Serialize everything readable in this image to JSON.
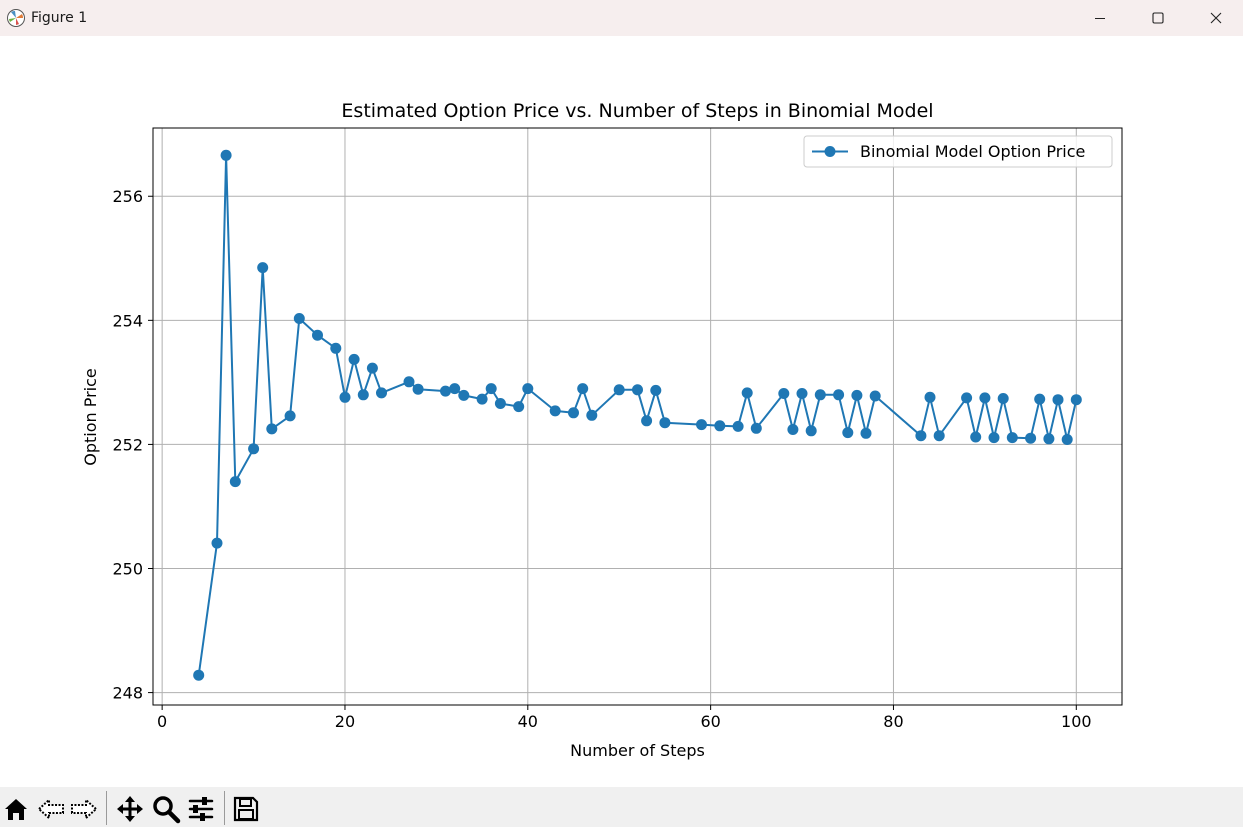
{
  "window": {
    "title": "Figure 1",
    "minimize_icon": "minimize-icon",
    "maximize_icon": "maximize-icon",
    "close_icon": "close-icon"
  },
  "toolbar": {
    "buttons": [
      "home-icon",
      "back-arrow-icon",
      "forward-arrow-icon",
      "pan-icon",
      "zoom-icon",
      "configure-subplots-icon",
      "save-icon"
    ]
  },
  "colors": {
    "series": "#1f77b4",
    "grid": "#b0b0b0"
  },
  "chart_data": {
    "type": "line",
    "title": "Estimated Option Price vs. Number of Steps in Binomial Model",
    "xlabel": "Number of Steps",
    "ylabel": "Option Price",
    "xlim": [
      -1,
      105
    ],
    "ylim": [
      247.8,
      257.1
    ],
    "xticks": [
      0,
      20,
      40,
      60,
      80,
      100
    ],
    "yticks": [
      248,
      250,
      252,
      254,
      256
    ],
    "grid": true,
    "legend_position": "top-right",
    "series": [
      {
        "name": "Binomial Model Option Price",
        "marker": "circle",
        "x": [
          4,
          6,
          7,
          8,
          10,
          11,
          12,
          14,
          15,
          17,
          19,
          20,
          21,
          22,
          23,
          24,
          27,
          28,
          31,
          32,
          33,
          35,
          36,
          37,
          39,
          40,
          43,
          45,
          46,
          47,
          50,
          52,
          53,
          54,
          55,
          59,
          61,
          63,
          64,
          65,
          68,
          69,
          70,
          71,
          72,
          74,
          75,
          76,
          77,
          78,
          83,
          84,
          85,
          88,
          89,
          90,
          91,
          92,
          93,
          95,
          96,
          97,
          98,
          99,
          100
        ],
        "y": [
          248.28,
          250.41,
          256.66,
          251.4,
          251.93,
          254.85,
          252.25,
          252.46,
          254.03,
          253.76,
          253.55,
          252.76,
          253.37,
          252.8,
          253.23,
          252.83,
          253.01,
          252.89,
          252.86,
          252.9,
          252.79,
          252.73,
          252.9,
          252.66,
          252.61,
          252.9,
          252.54,
          252.51,
          252.9,
          252.47,
          252.88,
          252.88,
          252.38,
          252.87,
          252.35,
          252.32,
          252.3,
          252.29,
          252.83,
          252.26,
          252.82,
          252.24,
          252.82,
          252.22,
          252.8,
          252.8,
          252.19,
          252.79,
          252.18,
          252.78,
          252.14,
          252.76,
          252.14,
          252.75,
          252.12,
          252.75,
          252.11,
          252.74,
          252.11,
          252.1,
          252.73,
          252.09,
          252.72,
          252.08,
          252.72
        ]
      }
    ]
  }
}
